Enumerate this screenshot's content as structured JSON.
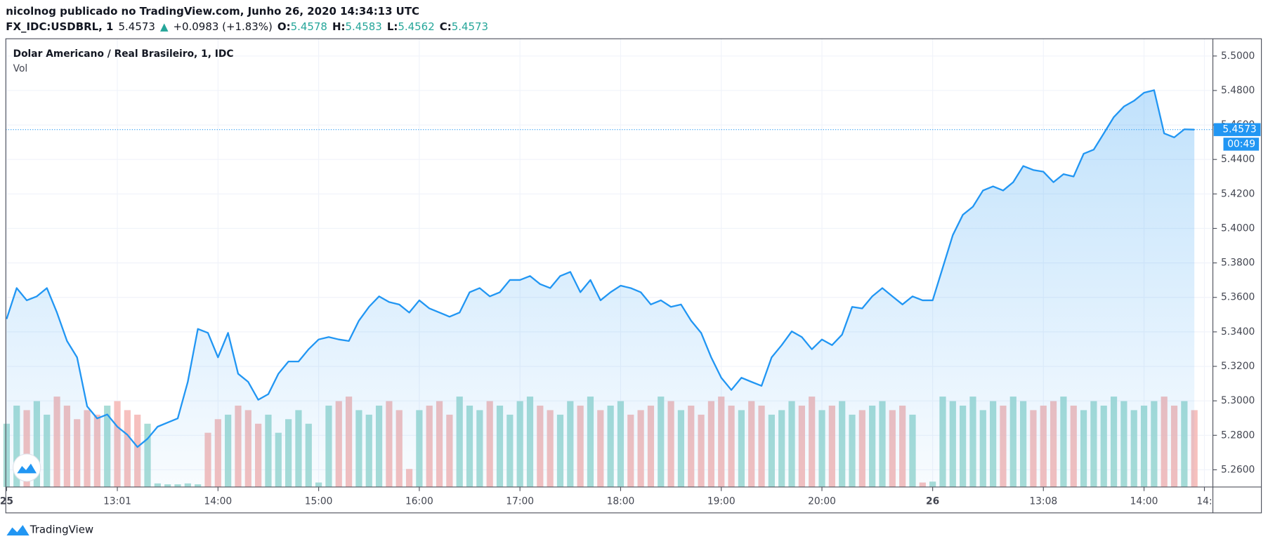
{
  "header": {
    "publisher": "nicolnog publicado no TradingView.com, Junho 26, 2020 14:34:13 UTC",
    "symbol": "FX_IDC:USDBRL, 1",
    "last": "5.4573",
    "arrow": "▲",
    "change": "+0.0983 (+1.83%)",
    "o_label": "O:",
    "open": "5.4578",
    "h_label": "H:",
    "high": "5.4583",
    "l_label": "L:",
    "low": "5.4562",
    "c_label": "C:",
    "close": "5.4573"
  },
  "footer": {
    "brand": "TradingView"
  },
  "chart_data": {
    "type": "line",
    "title": "Dolar Americano / Real Brasileiro, 1, IDC",
    "volume_label": "Vol",
    "countdown": "00:49",
    "categories": [
      "25",
      null,
      null,
      null,
      null,
      null,
      null,
      null,
      null,
      null,
      null,
      "13:01",
      null,
      null,
      null,
      null,
      null,
      null,
      null,
      null,
      null,
      "14:00",
      null,
      null,
      null,
      null,
      null,
      null,
      null,
      null,
      null,
      "15:00",
      null,
      null,
      null,
      null,
      null,
      null,
      null,
      null,
      null,
      "16:00",
      null,
      null,
      null,
      null,
      null,
      null,
      null,
      null,
      null,
      "17:00",
      null,
      null,
      null,
      null,
      null,
      null,
      null,
      null,
      null,
      "18:00",
      null,
      null,
      null,
      null,
      null,
      null,
      null,
      null,
      null,
      "19:00",
      null,
      null,
      null,
      null,
      null,
      null,
      null,
      null,
      null,
      "20:00",
      null,
      null,
      null,
      null,
      null,
      null,
      null,
      null,
      null,
      null,
      "26",
      null,
      null,
      null,
      null,
      null,
      null,
      null,
      null,
      null,
      null,
      "13:08",
      null,
      null,
      null,
      null,
      null,
      null,
      null,
      null,
      null,
      "14:00",
      null,
      null,
      null,
      null,
      null,
      "14:"
    ],
    "series": [
      {
        "name": "USDBRL",
        "color": "#2196f3",
        "values": [
          5.3475,
          5.3654,
          5.3583,
          5.3606,
          5.3654,
          5.3512,
          5.3347,
          5.3252,
          5.2968,
          5.2898,
          5.2921,
          5.285,
          5.2803,
          5.2732,
          5.278,
          5.285,
          5.2874,
          5.2898,
          5.311,
          5.3417,
          5.3394,
          5.3252,
          5.3394,
          5.3157,
          5.311,
          5.3006,
          5.3039,
          5.3157,
          5.3228,
          5.3228,
          5.3299,
          5.3356,
          5.337,
          5.3356,
          5.3347,
          5.3465,
          5.3545,
          5.3606,
          5.3573,
          5.3559,
          5.3512,
          5.3583,
          5.3536,
          5.3512,
          5.3488,
          5.3512,
          5.363,
          5.3654,
          5.3606,
          5.363,
          5.3701,
          5.3701,
          5.3724,
          5.3677,
          5.3654,
          5.3724,
          5.3748,
          5.363,
          5.3701,
          5.3583,
          5.363,
          5.3668,
          5.3654,
          5.363,
          5.3559,
          5.3583,
          5.3545,
          5.3559,
          5.3465,
          5.3394,
          5.3252,
          5.3134,
          5.3063,
          5.3134,
          5.311,
          5.3087,
          5.3252,
          5.3323,
          5.3403,
          5.337,
          5.3299,
          5.3356,
          5.3323,
          5.3384,
          5.3545,
          5.3536,
          5.3606,
          5.3654,
          5.3606,
          5.3559,
          5.3606,
          5.3583,
          5.3583,
          5.3772,
          5.3961,
          5.4079,
          5.4126,
          5.422,
          5.4244,
          5.422,
          5.4268,
          5.4362,
          5.4339,
          5.4329,
          5.4268,
          5.4315,
          5.4301,
          5.4433,
          5.4457,
          5.4551,
          5.4646,
          5.4707,
          5.474,
          5.4787,
          5.4802,
          5.4551,
          5.4528,
          5.4575,
          5.4573,
          null
        ]
      },
      {
        "name": "Vol",
        "values": [
          70,
          90,
          85,
          95,
          80,
          100,
          90,
          75,
          85,
          80,
          90,
          95,
          85,
          80,
          70,
          4,
          3,
          3,
          4,
          3,
          60,
          75,
          80,
          90,
          85,
          70,
          80,
          60,
          75,
          85,
          70,
          5,
          90,
          95,
          100,
          85,
          80,
          90,
          95,
          85,
          20,
          85,
          90,
          95,
          80,
          100,
          90,
          85,
          95,
          90,
          80,
          95,
          100,
          90,
          85,
          80,
          95,
          90,
          100,
          85,
          90,
          95,
          80,
          85,
          90,
          100,
          95,
          85,
          90,
          80,
          95,
          100,
          90,
          85,
          95,
          90,
          80,
          85,
          95,
          90,
          100,
          85,
          90,
          95,
          80,
          85,
          90,
          95,
          85,
          90,
          80,
          5,
          6,
          100,
          95,
          90,
          100,
          85,
          95,
          90,
          100,
          95,
          85,
          90,
          95,
          100,
          90,
          85,
          95,
          90,
          100,
          95,
          85,
          90,
          95,
          100,
          90,
          95,
          85,
          null
        ]
      }
    ],
    "up_color": "#9ad7cf",
    "down_color": "#f5b5b3",
    "ylim": [
      5.25,
      5.51
    ],
    "yticks": [
      {
        "value": 5.26,
        "label": "5.2600"
      },
      {
        "value": 5.28,
        "label": "5.2800"
      },
      {
        "value": 5.3,
        "label": "5.3000"
      },
      {
        "value": 5.32,
        "label": "5.3200"
      },
      {
        "value": 5.34,
        "label": "5.3400"
      },
      {
        "value": 5.36,
        "label": "5.3600"
      },
      {
        "value": 5.38,
        "label": "5.3800"
      },
      {
        "value": 5.4,
        "label": "5.4000"
      },
      {
        "value": 5.42,
        "label": "5.4200"
      },
      {
        "value": 5.44,
        "label": "5.4400"
      },
      {
        "value": 5.46,
        "label": "5.4600"
      },
      {
        "value": 5.48,
        "label": "5.4800"
      },
      {
        "value": 5.5,
        "label": "5.5000"
      }
    ],
    "grid": true
  }
}
